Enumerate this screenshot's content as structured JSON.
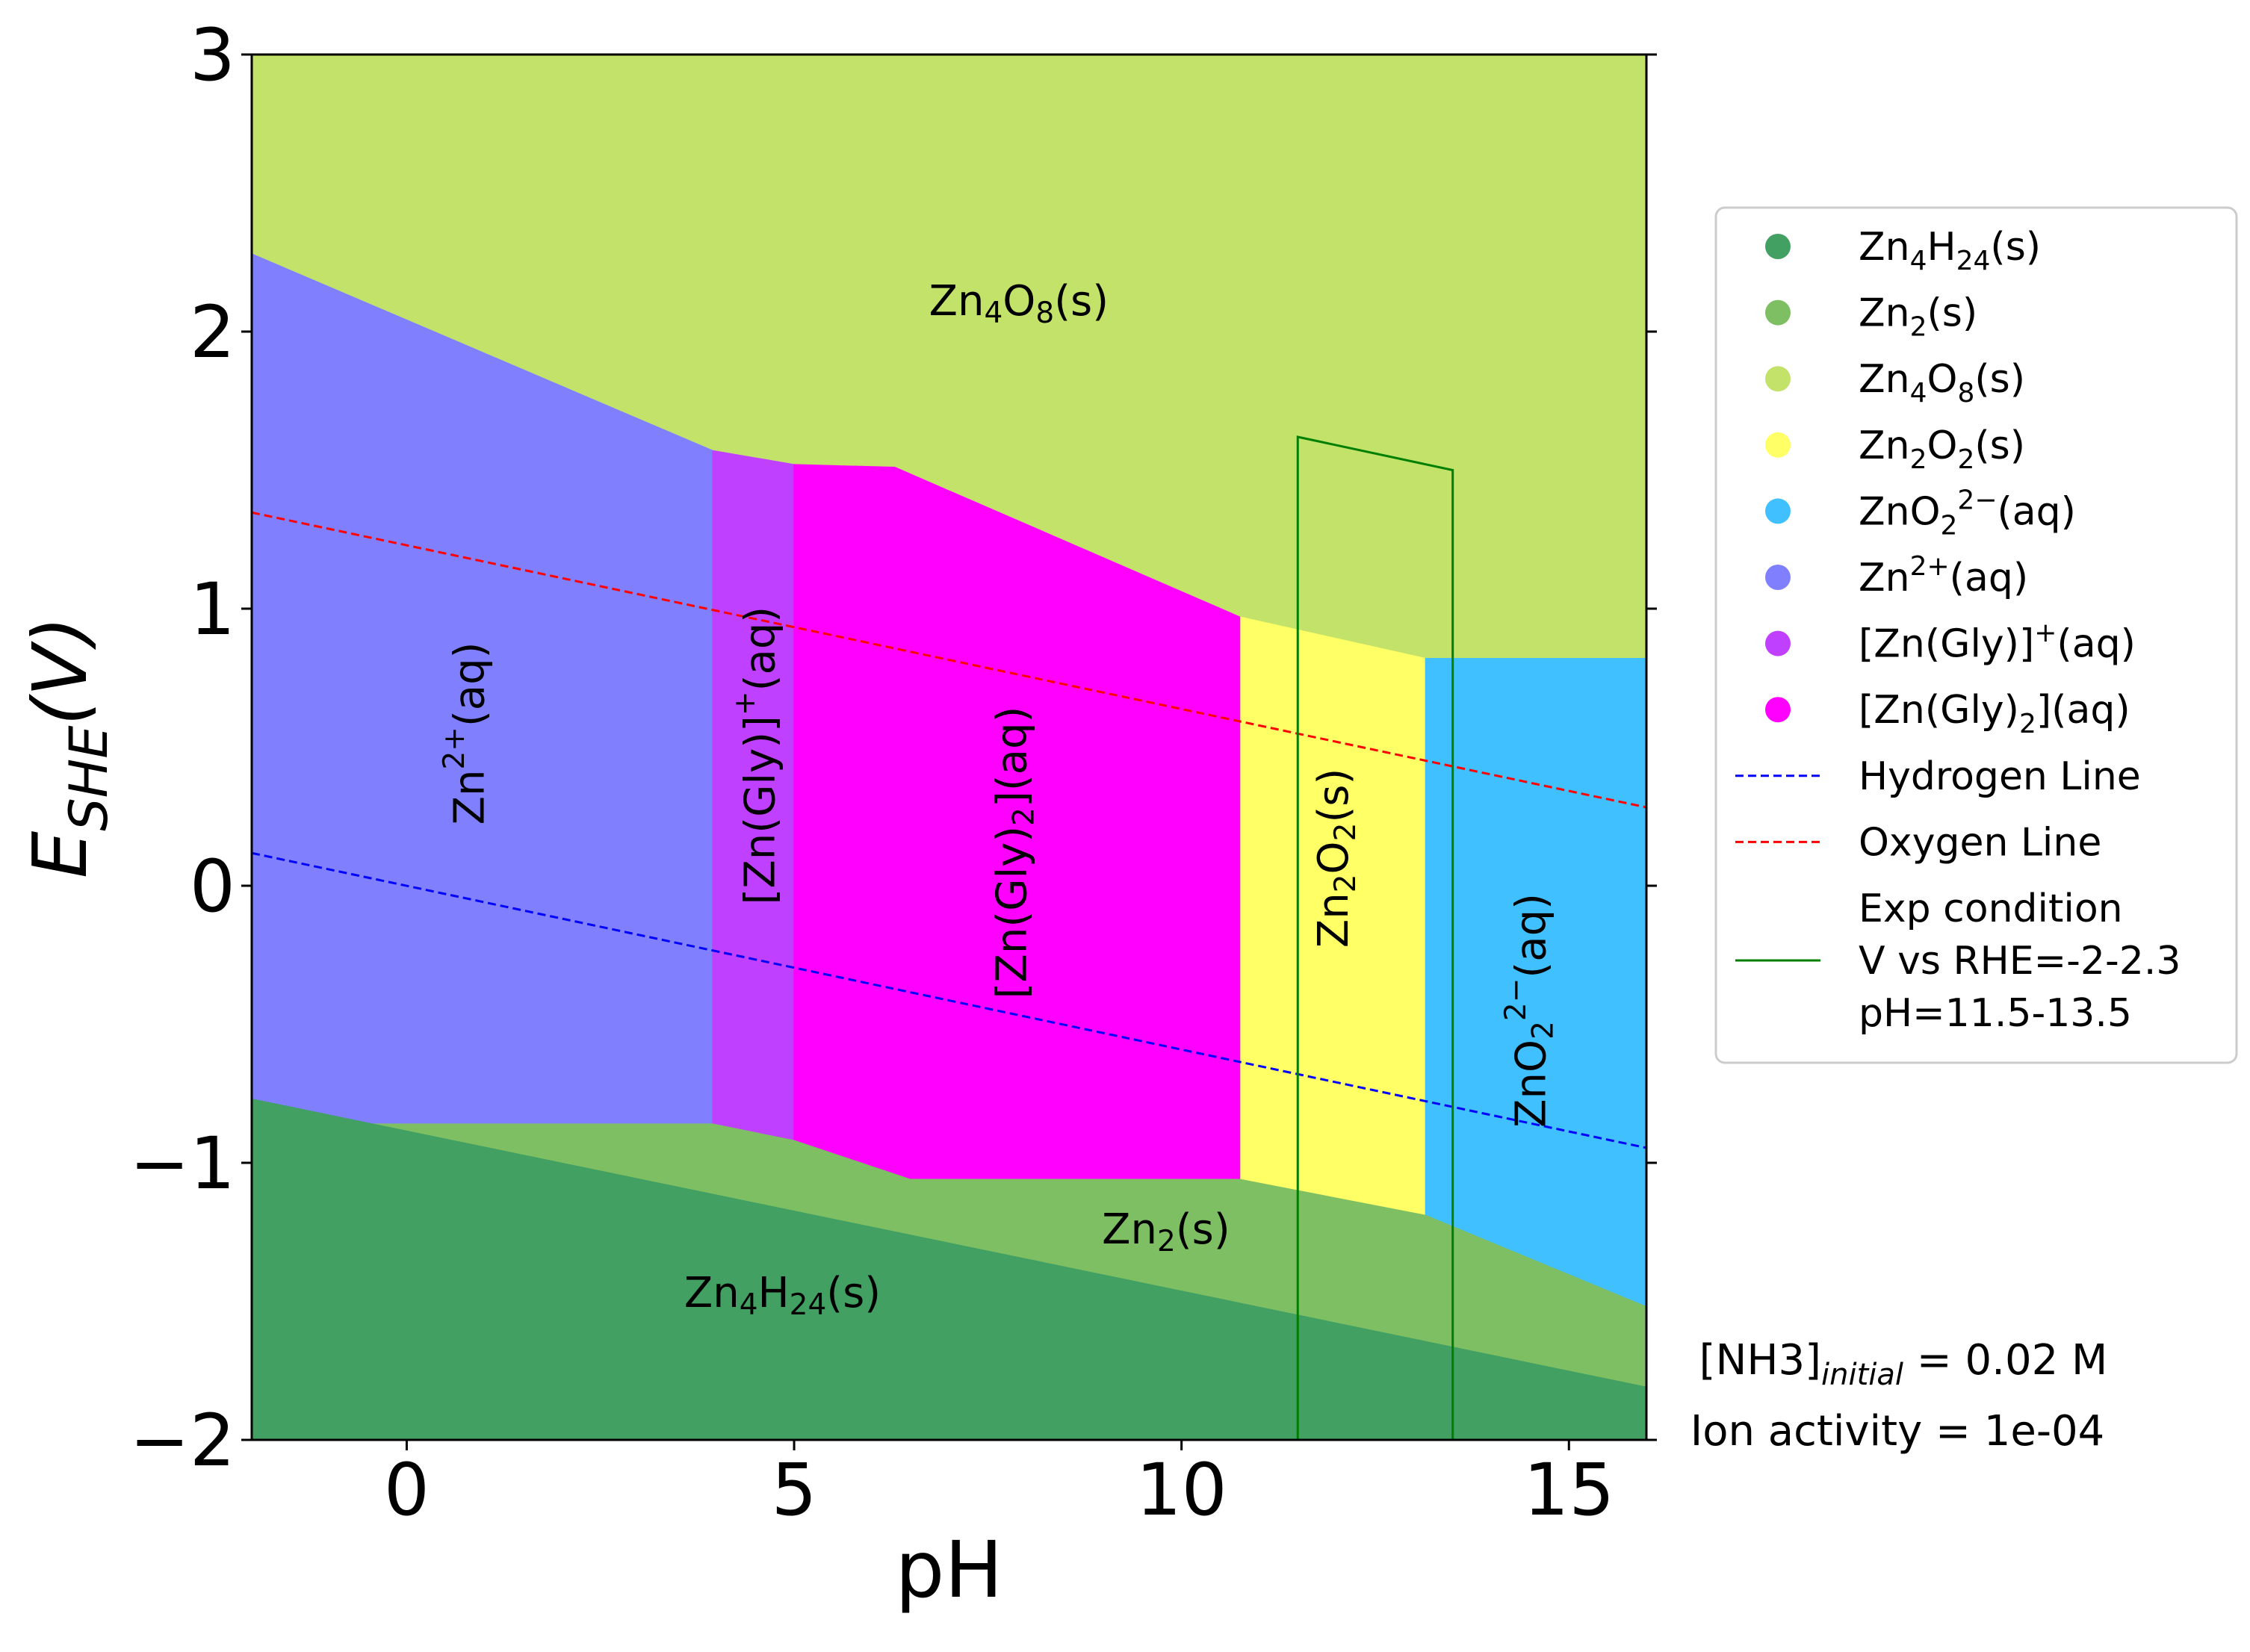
{
  "chart_data": {
    "type": "area",
    "xlabel": "pH",
    "ylabel_main": "E",
    "ylabel_sub": "SHE",
    "ylabel_tail": "(V)",
    "xlim": [
      -2,
      16
    ],
    "ylim": [
      -2,
      3
    ],
    "xticks": [
      0,
      5,
      10,
      15
    ],
    "xtick_labels": [
      "0",
      "5",
      "10",
      "15"
    ],
    "yticks": [
      -2,
      -1,
      0,
      1,
      2,
      3
    ],
    "ytick_labels": [
      "−2",
      "−1",
      "0",
      "1",
      "2",
      "3"
    ],
    "regions": [
      {
        "id": "zn4o8",
        "color": "#c2e26a",
        "polygon": [
          [
            -2,
            3
          ],
          [
            16,
            3
          ],
          [
            16,
            0.82
          ],
          [
            -2,
            0.82
          ]
        ]
      },
      {
        "id": "zn2o2",
        "color": "#ffff66",
        "polygon": [
          [
            10.75,
            0.97
          ],
          [
            13.15,
            0.82
          ],
          [
            13.15,
            -1.19
          ],
          [
            10.75,
            -1.06
          ]
        ]
      },
      {
        "id": "zno2aq",
        "color": "#40c0ff",
        "polygon": [
          [
            13.15,
            0.82
          ],
          [
            16,
            0.82
          ],
          [
            16,
            -1.52
          ],
          [
            13.15,
            -1.19
          ]
        ]
      },
      {
        "id": "zn2aq",
        "color": "#8080ff",
        "polygon": [
          [
            -2,
            2.28
          ],
          [
            3.95,
            1.57
          ],
          [
            3.95,
            -0.86
          ],
          [
            -2,
            -0.86
          ]
        ]
      },
      {
        "id": "zngly",
        "color": "#c040ff",
        "polygon": [
          [
            3.95,
            1.57
          ],
          [
            5.0,
            1.52
          ],
          [
            5.0,
            -0.92
          ],
          [
            3.95,
            -0.86
          ]
        ]
      },
      {
        "id": "zngly2",
        "color": "#ff00ff",
        "polygon": [
          [
            5.0,
            1.52
          ],
          [
            6.3,
            1.51
          ],
          [
            10.75,
            0.97
          ],
          [
            10.75,
            -1.06
          ],
          [
            6.5,
            -1.06
          ],
          [
            5.0,
            -0.92
          ]
        ]
      },
      {
        "id": "zn2s",
        "color": "#7fbf64",
        "polygon": [
          [
            -2,
            -0.86
          ],
          [
            3.95,
            -0.86
          ],
          [
            5.0,
            -0.92
          ],
          [
            6.5,
            -1.06
          ],
          [
            10.75,
            -1.06
          ],
          [
            13.15,
            -1.19
          ],
          [
            16,
            -1.52
          ],
          [
            16,
            -2
          ],
          [
            -2,
            -2
          ]
        ]
      },
      {
        "id": "zn4h24",
        "color": "#41a062",
        "polygon": [
          [
            -2,
            -0.77
          ],
          [
            16,
            -1.81
          ],
          [
            16,
            -2
          ],
          [
            -2,
            -2
          ]
        ]
      }
    ],
    "region_labels": [
      {
        "main": "Zn",
        "s1": "4",
        "m2": "O",
        "s2": "8",
        "tail": "(s)",
        "x": 7.9,
        "y": 2.1,
        "rotate": false
      },
      {
        "main": "Zn",
        "s1": "2",
        "m2": "",
        "s2": "",
        "tail": "(s)",
        "x": 9.8,
        "y": -1.25,
        "rotate": false
      },
      {
        "main": "Zn",
        "s1": "4",
        "m2": "H",
        "s2": "24",
        "tail": "(s)",
        "x": 4.85,
        "y": -1.48,
        "rotate": false
      },
      {
        "main": "Zn",
        "sup": "2+",
        "tail": "(aq)",
        "x": 0.85,
        "y": 0.55,
        "rotate": true
      },
      {
        "main": "[Zn(Gly)]",
        "sup": "+",
        "tail": "(aq)",
        "x": 4.6,
        "y": 0.47,
        "rotate": true
      },
      {
        "main": "[Zn(Gly)",
        "s1": "2",
        "tail": "](aq)",
        "x": 7.85,
        "y": 0.12,
        "rotate": true
      },
      {
        "main": "Zn",
        "s1": "2",
        "m2": "O",
        "s2": "2",
        "tail": "(s)",
        "x": 12.0,
        "y": 0.1,
        "rotate": true
      },
      {
        "main": "ZnO",
        "s1": "2",
        "sup": "2−",
        "tail": "(aq)",
        "x": 14.55,
        "y": -0.45,
        "rotate": true
      }
    ],
    "lines": [
      {
        "name": "Hydrogen Line",
        "color": "#0000ff",
        "dash": true,
        "points": [
          [
            -2,
            0.118
          ],
          [
            16,
            -0.946
          ]
        ]
      },
      {
        "name": "Oxygen Line",
        "color": "#ff0000",
        "dash": true,
        "points": [
          [
            -2,
            1.347
          ],
          [
            16,
            0.283
          ]
        ]
      }
    ],
    "exp_condition": {
      "color": "#007f00",
      "points": [
        [
          11.5,
          -2
        ],
        [
          11.5,
          1.62
        ],
        [
          13.5,
          1.5
        ],
        [
          13.5,
          -2
        ]
      ]
    },
    "legend": {
      "placement": "center-right",
      "entries": [
        {
          "label_main": "Zn",
          "s1": "4",
          "m2": "H",
          "s2": "24",
          "tail": "(s)",
          "color": "#41a062",
          "marker": "dot"
        },
        {
          "label_main": "Zn",
          "s1": "2",
          "m2": "",
          "s2": "",
          "tail": "(s)",
          "color": "#7fbf64",
          "marker": "dot"
        },
        {
          "label_main": "Zn",
          "s1": "4",
          "m2": "O",
          "s2": "8",
          "tail": "(s)",
          "color": "#c2e26a",
          "marker": "dot"
        },
        {
          "label_main": "Zn",
          "s1": "2",
          "m2": "O",
          "s2": "2",
          "tail": "(s)",
          "color": "#ffff66",
          "marker": "dot"
        },
        {
          "label_main": "ZnO",
          "s1": "2",
          "sup": "2−",
          "tail": "(aq)",
          "color": "#40c0ff",
          "marker": "dot"
        },
        {
          "label_main": "Zn",
          "sup": "2+",
          "tail": "(aq)",
          "color": "#8080ff",
          "marker": "dot"
        },
        {
          "label_main": "[Zn(Gly)]",
          "sup": "+",
          "tail": "(aq)",
          "color": "#c040ff",
          "marker": "dot"
        },
        {
          "label_main": "[Zn(Gly)",
          "s1": "2",
          "tail": "](aq)",
          "color": "#ff00ff",
          "marker": "dot"
        },
        {
          "label_main": "Hydrogen Line",
          "color": "#0000ff",
          "marker": "dash"
        },
        {
          "label_main": "Oxygen Line",
          "color": "#ff0000",
          "marker": "dash"
        },
        {
          "label_lines": [
            "Exp condition",
            "V vs RHE=-2-2.3",
            "pH=11.5-13.5"
          ],
          "color": "#007f00",
          "marker": "line"
        }
      ]
    },
    "annotations": {
      "nh3_main": "[NH3]",
      "nh3_sub": "initial",
      "nh3_tail": " = 0.02 M",
      "ion_activity": "Ion activity = 1e-04"
    }
  }
}
